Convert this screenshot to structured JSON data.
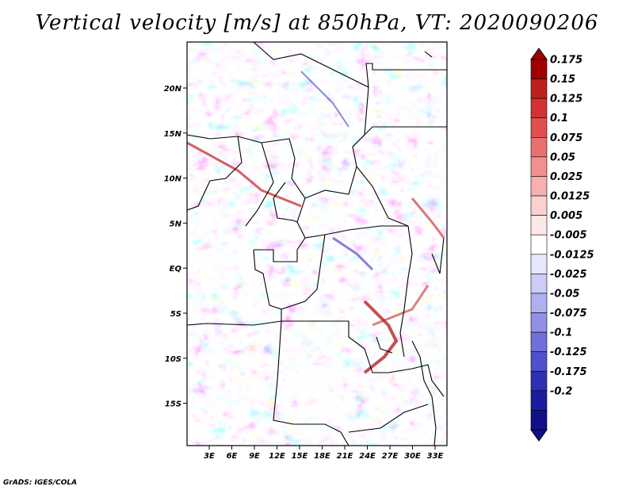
{
  "title": "Vertical velocity [m/s] at 850hPa, VT: 2020090206",
  "credit": "GrADS: IGES/COLA",
  "map": {
    "lon_labels": [
      "3E",
      "6E",
      "9E",
      "12E",
      "15E",
      "18E",
      "21E",
      "24E",
      "27E",
      "30E",
      "33E"
    ],
    "lat_labels": [
      "20N",
      "15N",
      "10N",
      "5N",
      "EQ",
      "5S",
      "10S",
      "15S"
    ],
    "colors": {
      "background_white": "#ffffff",
      "border": "#000000"
    }
  },
  "colorbar": {
    "labels": [
      "0.175",
      "0.15",
      "0.125",
      "0.1",
      "0.075",
      "0.05",
      "0.025",
      "0.0125",
      "0.005",
      "-0.005",
      "-0.0125",
      "-0.025",
      "-0.05",
      "-0.075",
      "-0.1",
      "-0.125",
      "-0.175",
      "-0.2"
    ],
    "colors": [
      "#a00000",
      "#be1e1e",
      "#d23232",
      "#e05050",
      "#e87070",
      "#f09090",
      "#f6b0b0",
      "#fad0d0",
      "#fde8e8",
      "#ffffff",
      "#e8e8fd",
      "#ccccf6",
      "#b0b0f0",
      "#9090e8",
      "#7070dc",
      "#5050cc",
      "#3030b4",
      "#1c1ca0",
      "#10108a"
    ]
  }
}
